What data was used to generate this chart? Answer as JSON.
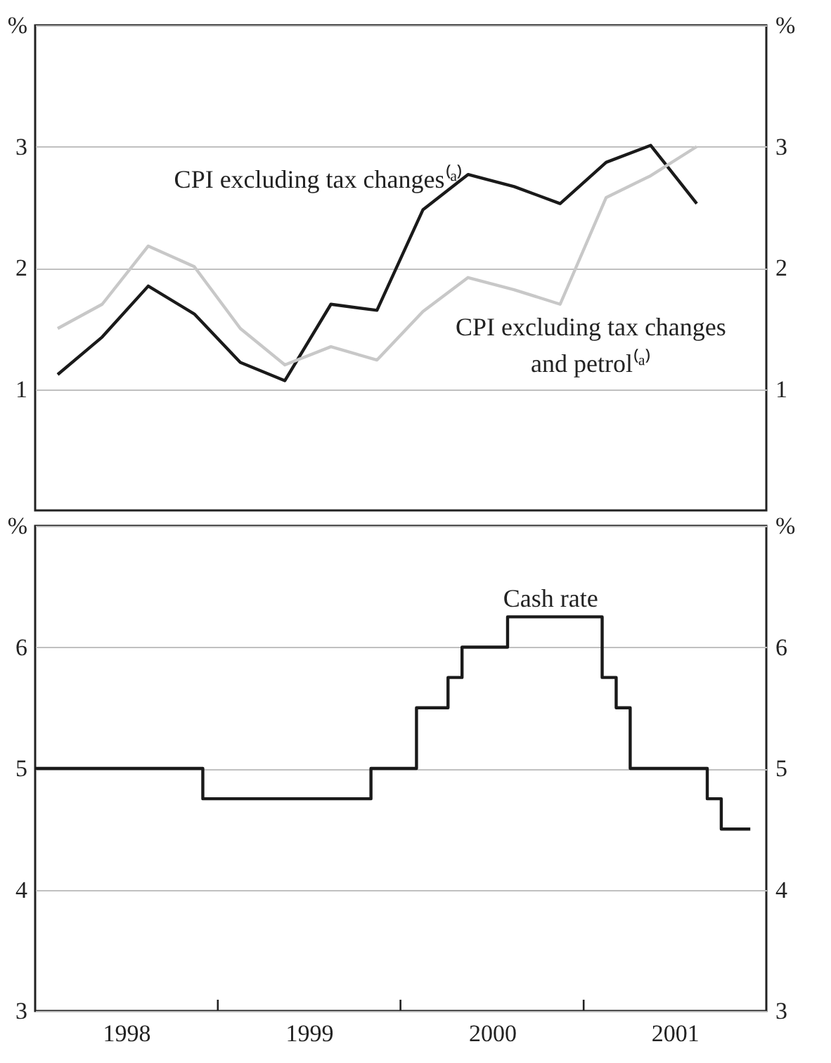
{
  "chart_data": [
    {
      "type": "line",
      "xlim": [
        "1998-01-01",
        "2002-01-01"
      ],
      "ylim": [
        0,
        4
      ],
      "yticks": [
        1,
        2,
        3,
        {
          "value": 4,
          "label": "%"
        }
      ],
      "y2lim": [
        0,
        4
      ],
      "y2ticks": [
        1,
        2,
        3,
        {
          "value": 4,
          "label": "%"
        }
      ],
      "grid": "y",
      "tick_labels": "y",
      "line_style": "solid",
      "x": [
        "1998-02-15",
        "1998-05-15",
        "1998-08-15",
        "1998-11-15",
        "1999-02-15",
        "1999-05-15",
        "1999-08-15",
        "1999-11-15",
        "2000-02-15",
        "2000-05-15",
        "2000-08-15",
        "2000-11-15",
        "2001-02-15",
        "2001-05-15",
        "2001-08-15"
      ],
      "series": [
        {
          "name": "CPI excluding tax changes⁽ᵃ⁾",
          "color": "#1a1a1a",
          "values": [
            1.12,
            1.43,
            1.85,
            1.62,
            1.22,
            1.07,
            1.7,
            1.65,
            2.48,
            2.77,
            2.67,
            2.53,
            2.87,
            3.01,
            2.53
          ]
        },
        {
          "name": "CPI excluding tax changes and petrol⁽ᵃ⁾",
          "color": "#c8c8c8",
          "values": [
            1.5,
            1.7,
            2.18,
            2.01,
            1.5,
            1.2,
            1.35,
            1.24,
            1.64,
            1.92,
            1.82,
            1.7,
            2.58,
            2.76,
            3.0
          ]
        }
      ]
    },
    {
      "type": "step",
      "xlim": [
        "1998-01-01",
        "2002-01-01"
      ],
      "xticks": [
        {
          "value": "1998-07-02",
          "label": "1998"
        },
        {
          "value": "1999-07-02",
          "label": "1999"
        },
        {
          "value": "2000-07-02",
          "label": "2000"
        },
        {
          "value": "2001-07-02",
          "label": "2001"
        },
        {
          "value": "1999-01-01",
          "label": null
        },
        {
          "value": "2000-01-01",
          "label": null
        },
        {
          "value": "2001-01-01",
          "label": null
        }
      ],
      "ylim": [
        3,
        7
      ],
      "yticks": [
        3,
        4,
        5,
        6,
        {
          "value": 7,
          "label": "%"
        }
      ],
      "y2lim": [
        3,
        7
      ],
      "y2ticks": [
        3,
        4,
        5,
        6,
        {
          "value": 7,
          "label": "%"
        }
      ],
      "grid": "y",
      "line_style": "solid",
      "x": [
        "1998-01-01",
        "1998-12-02",
        "1999-11-03",
        "2000-02-02",
        "2000-04-05",
        "2000-05-03",
        "2000-08-02",
        "2001-02-07",
        "2001-03-07",
        "2001-04-04",
        "2001-09-05",
        "2001-10-03",
        "2001-11-30"
      ],
      "series": [
        {
          "name": "Cash rate",
          "color": "#1a1a1a",
          "values": [
            5,
            4.75,
            5,
            5.5,
            5.75,
            6,
            6.25,
            5.75,
            5.5,
            5,
            4.75,
            4.5,
            4.5
          ]
        }
      ]
    }
  ]
}
